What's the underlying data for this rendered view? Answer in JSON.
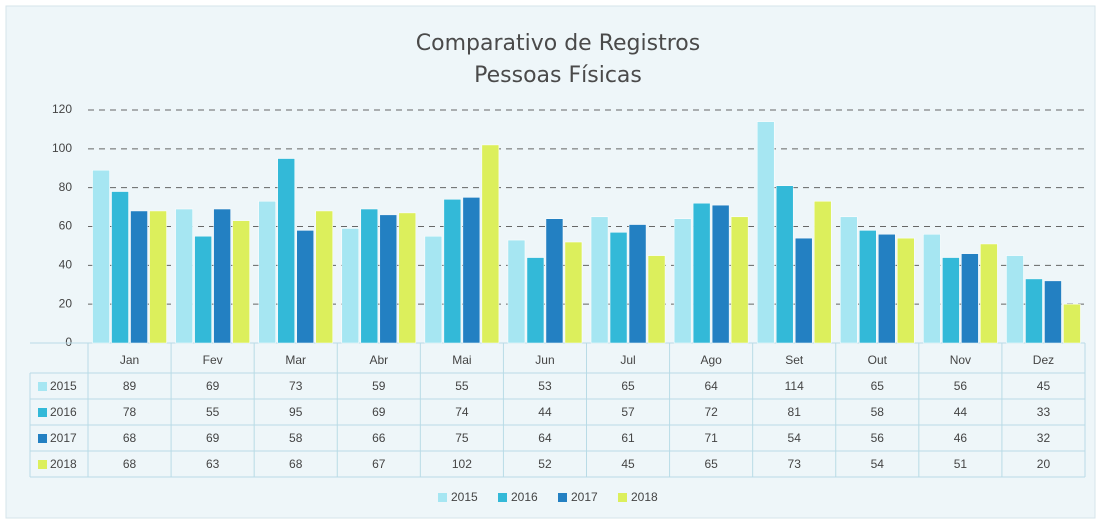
{
  "chart_data": {
    "type": "bar",
    "title": "Comparativo  de Registros",
    "subtitle": "Pessoas Físicas",
    "categories": [
      "Jan",
      "Fev",
      "Mar",
      "Abr",
      "Mai",
      "Jun",
      "Jul",
      "Ago",
      "Set",
      "Out",
      "Nov",
      "Dez"
    ],
    "series": [
      {
        "name": "2015",
        "color": "#a6e6f2",
        "values": [
          89,
          69,
          73,
          59,
          55,
          53,
          65,
          64,
          114,
          65,
          56,
          45
        ]
      },
      {
        "name": "2016",
        "color": "#33b9d8",
        "values": [
          78,
          55,
          95,
          69,
          74,
          44,
          57,
          72,
          81,
          58,
          44,
          33
        ]
      },
      {
        "name": "2017",
        "color": "#2380c2",
        "values": [
          68,
          69,
          58,
          66,
          75,
          64,
          61,
          71,
          54,
          56,
          46,
          32
        ]
      },
      {
        "name": "2018",
        "color": "#dcef5c",
        "values": [
          68,
          63,
          68,
          67,
          102,
          52,
          45,
          65,
          73,
          54,
          51,
          20
        ]
      }
    ],
    "ylim": [
      0,
      120
    ],
    "yticks": [
      0,
      20,
      40,
      60,
      80,
      100,
      120
    ],
    "grid": true,
    "legend": "bottom"
  }
}
